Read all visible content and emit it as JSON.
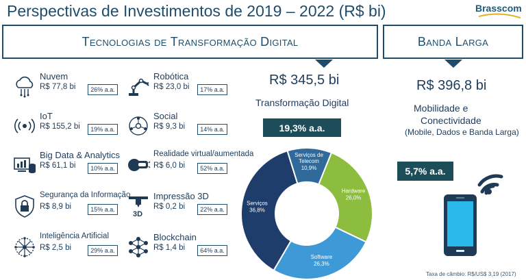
{
  "title": "Perspectivas de Investimentos de 2019 – 2022 (R$ bi)",
  "logo": {
    "text": "Brasscom"
  },
  "sections": {
    "left": "Tecnologias de Transformação Digital",
    "right": "Banda Larga"
  },
  "items": [
    {
      "name": "Nuvem",
      "value": "R$ 77,8 bi",
      "rate": "26% a.a.",
      "icon": "cloud-icon"
    },
    {
      "name": "Robótica",
      "value": "R$ 23,0 bi",
      "rate": "17% a.a.",
      "icon": "robot-arm-icon"
    },
    {
      "name": "IoT",
      "value": "R$ 155,2 bi",
      "rate": "19% a.a.",
      "icon": "iot-icon"
    },
    {
      "name": "Social",
      "value": "R$ 9,3 bi",
      "rate": "14% a.a.",
      "icon": "social-network-icon"
    },
    {
      "name": "Big Data & Analytics",
      "value": "R$ 61,1 bi",
      "rate": "10% a.a.",
      "icon": "bigdata-icon"
    },
    {
      "name": "Realidade virtual/aumentada",
      "value": "R$ 6,0 bi",
      "rate": "52% a.a.",
      "icon": "vr-headset-icon"
    },
    {
      "name": "Segurança da Informação",
      "value": "R$ 8,9 bi",
      "rate": "15% a.a.",
      "icon": "lock-icon"
    },
    {
      "name": "Impressão 3D",
      "value": "R$ 0,2 bi",
      "rate": "22% a.a.",
      "icon": "3d-printer-icon"
    },
    {
      "name": "Inteligência Artificial",
      "value": "R$ 2,5 bi",
      "rate": "29% a.a.",
      "icon": "brain-icon"
    },
    {
      "name": "Blockchain",
      "value": "R$ 1,4 bi",
      "rate": "64% a.a.",
      "icon": "blockchain-icon"
    }
  ],
  "digital": {
    "total": "R$ 345,5 bi",
    "label": "Transformação Digital",
    "rate": "19,3% a.a."
  },
  "broadband": {
    "total": "R$ 396,8 bi",
    "label_line1": "Mobilidade e",
    "label_line2": "Conectividade",
    "label_line3": "(Mobile, Dados e Banda Larga)",
    "rate": "5,7% a.a."
  },
  "footnote": "Taxa de câmbio: R$/US$ 3,19 (2017)",
  "colors": {
    "navy": "#1e4d6b",
    "hardware": "#8cbd3f",
    "software": "#3d9ad6",
    "servicos": "#1f3d6b",
    "telecom": "#2f6a9a",
    "banner": "#1e4d5a"
  },
  "chart_data": {
    "type": "pie",
    "categories": [
      "Hardware",
      "Software",
      "Serviços",
      "Serviços de Telecom"
    ],
    "values": [
      26.0,
      26.3,
      36.8,
      10.9
    ],
    "labels": [
      "26,0%",
      "26,3%",
      "36,8%",
      "10,9%"
    ],
    "donut": true
  }
}
